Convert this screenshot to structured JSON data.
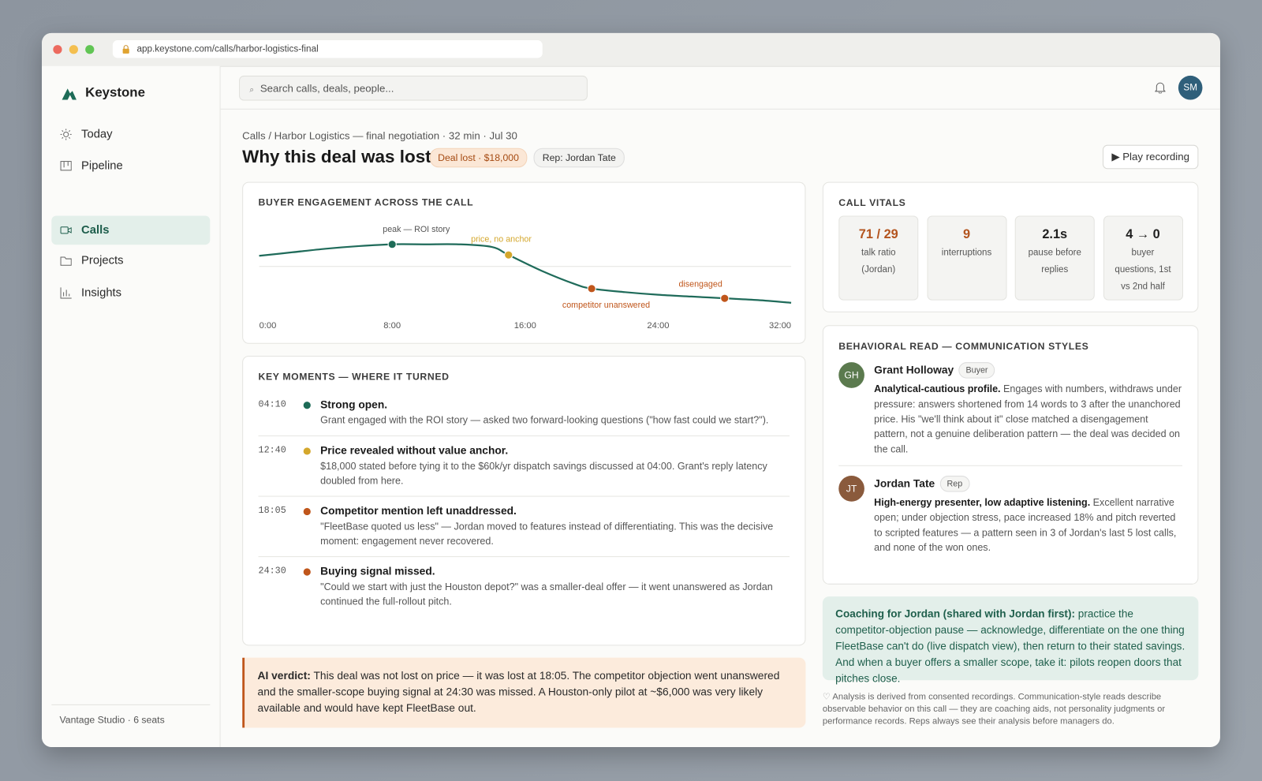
{
  "browser": {
    "url": "app.keystone.com/calls/harbor-logistics-final"
  },
  "sidebar": {
    "brand": "Keystone",
    "nav": [
      "Today",
      "Pipeline",
      "Calls",
      "Projects",
      "Insights"
    ],
    "footer": "Vantage Studio · 6 seats"
  },
  "topbar": {
    "search_placeholder": "Search calls, deals, people...",
    "avatar": "SM"
  },
  "header": {
    "breadcrumb": "Calls / Harbor Logistics — final negotiation · 32 min · Jul 30",
    "title": "Why this deal was lost",
    "badge_status": "Deal lost · $18,000",
    "badge_rep": "Rep: Jordan Tate",
    "play_button": "▶ Play recording"
  },
  "chart_data": {
    "type": "line",
    "title": "BUYER ENGAGEMENT ACROSS THE CALL",
    "x": [
      0,
      2,
      4,
      6,
      8,
      10,
      12,
      14,
      15,
      17,
      19,
      20,
      22,
      24,
      26,
      28,
      30,
      32
    ],
    "values": [
      62,
      66,
      70,
      73,
      75,
      75,
      75,
      72,
      63,
      45,
      30,
      25,
      21,
      18,
      16,
      14,
      12,
      9
    ],
    "color": "#1f6b5a",
    "xlim": [
      0,
      32
    ],
    "xticks": [
      {
        "value": 0,
        "label": "0:00"
      },
      {
        "value": 8,
        "label": "8:00"
      },
      {
        "value": 16,
        "label": "16:00"
      },
      {
        "value": 24,
        "label": "24:00"
      },
      {
        "value": 32,
        "label": "32:00"
      }
    ],
    "ylim": [
      0,
      100
    ],
    "reference_line": 50,
    "annotations": [
      {
        "x": 8,
        "value": 75,
        "label": "peak — ROI story",
        "color": "#1d6b57"
      },
      {
        "x": 15,
        "value": 63,
        "label": "price, no anchor",
        "color": "#d4a72c"
      },
      {
        "x": 20,
        "value": 25,
        "label": "competitor unanswered",
        "color": "#c0561b"
      },
      {
        "x": 28,
        "value": 14,
        "label": "disengaged",
        "color": "#c0561b"
      }
    ]
  },
  "key_moments": {
    "title": "KEY MOMENTS — WHERE IT TURNED",
    "items": [
      {
        "time": "04:10",
        "color": "#1d6b57",
        "title": "Strong open.",
        "text": "Grant engaged with the ROI story — asked two forward-looking questions (\"how fast could we start?\")."
      },
      {
        "time": "12:40",
        "color": "#d4a72c",
        "title": "Price revealed without value anchor.",
        "text": "$18,000 stated before tying it to the $60k/yr dispatch savings discussed at 04:00. Grant's reply latency doubled from here."
      },
      {
        "time": "18:05",
        "color": "#c0561b",
        "title": "Competitor mention left unaddressed.",
        "text": "\"FleetBase quoted us less\" — Jordan moved to features instead of differentiating. This was the decisive moment: engagement never recovered."
      },
      {
        "time": "24:30",
        "color": "#c0561b",
        "title": "Buying signal missed.",
        "text": "\"Could we start with just the Houston depot?\" was a smaller-deal offer — it went unanswered as Jordan continued the full-rollout pitch."
      }
    ]
  },
  "verdict": {
    "lead": "AI verdict:",
    "text": "This deal was not lost on price — it was lost at 18:05. The competitor objection went unanswered and the smaller-scope buying signal at 24:30 was missed. A Houston-only pilot at ~$6,000 was very likely available and would have kept FleetBase out."
  },
  "vitals": {
    "title": "CALL VITALS",
    "items": [
      {
        "value": "71 / 29",
        "label": "talk ratio (Jordan)",
        "color": "#b3541e"
      },
      {
        "value": "9",
        "label": "interruptions",
        "color": "#b3541e"
      },
      {
        "value": "2.1s",
        "label": "pause before replies",
        "color": "#1f1f1f"
      },
      {
        "value": "4 → 0",
        "label": "buyer questions, 1st vs 2nd half",
        "color": "#1f1f1f"
      }
    ]
  },
  "behavioral": {
    "title": "BEHAVIORAL READ — COMMUNICATION STYLES",
    "people": [
      {
        "initials": "GH",
        "color": "#5b7a4e",
        "name": "Grant Holloway",
        "role": "Buyer",
        "headline": "Analytical-cautious profile.",
        "text": "Engages with numbers, withdraws under pressure: answers shortened from 14 words to 3 after the unanchored price. His \"we'll think about it\" close matched a disengagement pattern, not a genuine deliberation pattern — the deal was decided on the call."
      },
      {
        "initials": "JT",
        "color": "#8a5a3c",
        "name": "Jordan Tate",
        "role": "Rep",
        "headline": "High-energy presenter, low adaptive listening.",
        "text": "Excellent narrative open; under objection stress, pace increased 18% and pitch reverted to scripted features — a pattern seen in 3 of Jordan's last 5 lost calls, and none of the won ones."
      }
    ]
  },
  "coaching": {
    "lead": "Coaching for Jordan (shared with Jordan first):",
    "text": "practice the competitor-objection pause — acknowledge, differentiate on the one thing FleetBase can't do (live dispatch view), then return to their stated savings. And when a buyer offers a smaller scope, take it: pilots reopen doors that pitches close."
  },
  "disclaimer": "Analysis is derived from consented recordings. Communication-style reads describe observable behavior on this call — they are coaching aids, not personality judgments or performance records. Reps always see their analysis before managers do."
}
